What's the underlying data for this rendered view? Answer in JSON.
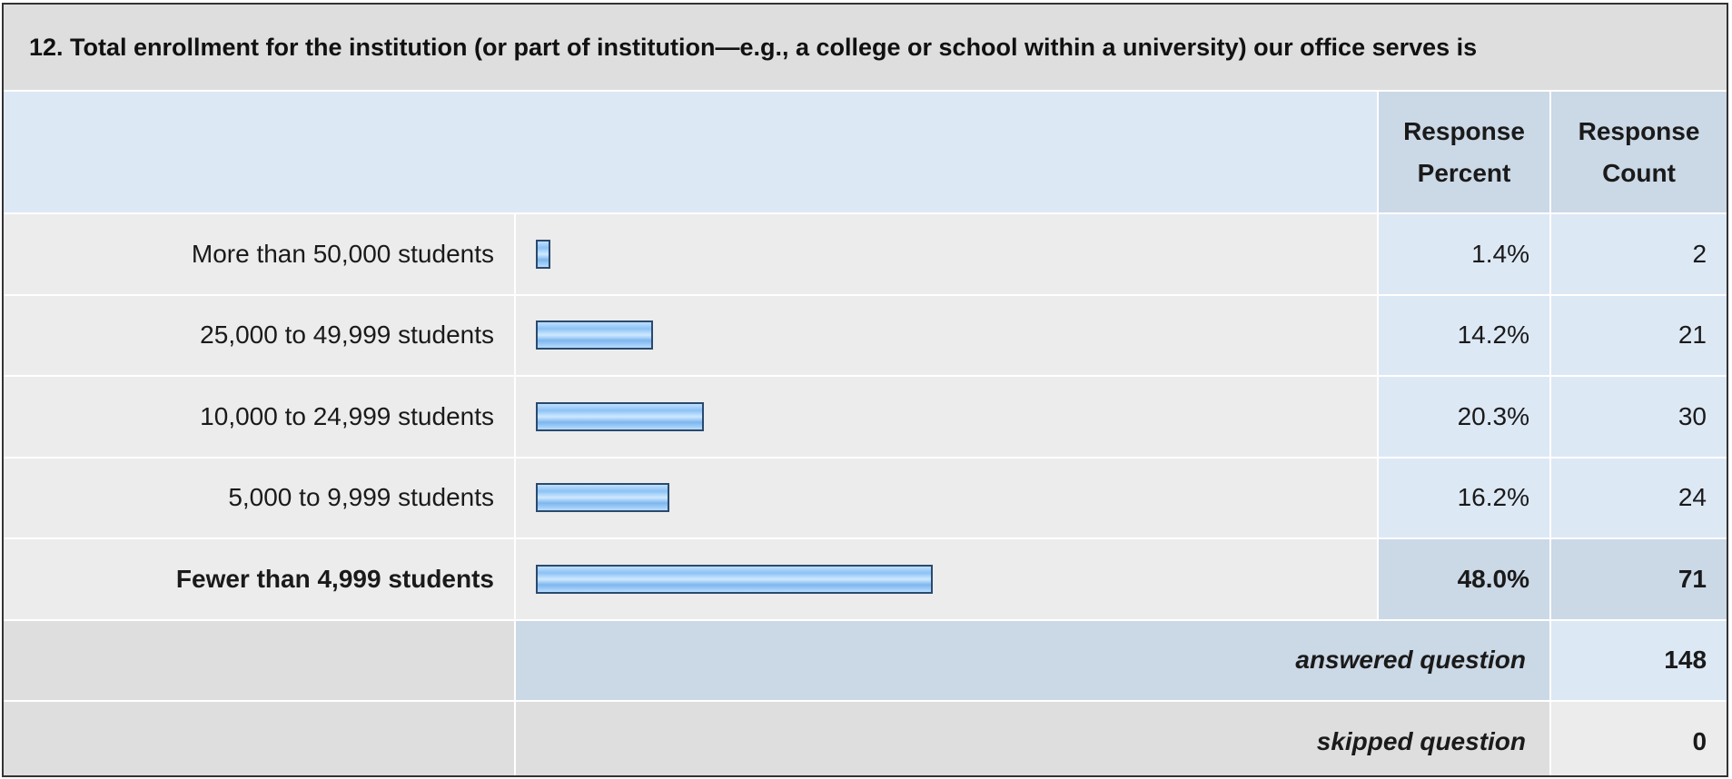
{
  "question": "12. Total enrollment for the institution (or part of institution—e.g., a college or school within a university) our office serves is",
  "headers": {
    "percent_line1": "Response",
    "percent_line2": "Percent",
    "count_line1": "Response",
    "count_line2": "Count"
  },
  "rows": [
    {
      "label": "More than 50,000 students",
      "percent_text": "1.4%",
      "count_text": "2"
    },
    {
      "label": "25,000 to 49,999 students",
      "percent_text": "14.2%",
      "count_text": "21"
    },
    {
      "label": "10,000 to 24,999 students",
      "percent_text": "20.3%",
      "count_text": "30"
    },
    {
      "label": "5,000 to 9,999 students",
      "percent_text": "16.2%",
      "count_text": "24"
    },
    {
      "label": "Fewer than 4,999 students",
      "percent_text": "48.0%",
      "count_text": "71"
    }
  ],
  "summary": {
    "answered_label": "answered question",
    "answered_value": "148",
    "skipped_label": "skipped question",
    "skipped_value": "0"
  },
  "colors": {
    "bar_border": "#2a4a6e",
    "bar_fill": "#8cc2f5",
    "header_bg": "#dde8f5",
    "title_bg": "#dedede"
  },
  "chart_data": {
    "type": "bar",
    "categories": [
      "More than 50,000 students",
      "25,000 to 49,999 students",
      "10,000 to 24,999 students",
      "5,000 to 9,999 students",
      "Fewer than 4,999 students"
    ],
    "values": [
      1.4,
      14.2,
      20.3,
      16.2,
      48.0
    ],
    "counts": [
      2,
      21,
      30,
      24,
      71
    ],
    "orientation": "horizontal",
    "unit": "%",
    "title": "12. Total enrollment for the institution (or part of institution—e.g., a college or school within a university) our office serves is",
    "grid": false,
    "legend": "none"
  }
}
